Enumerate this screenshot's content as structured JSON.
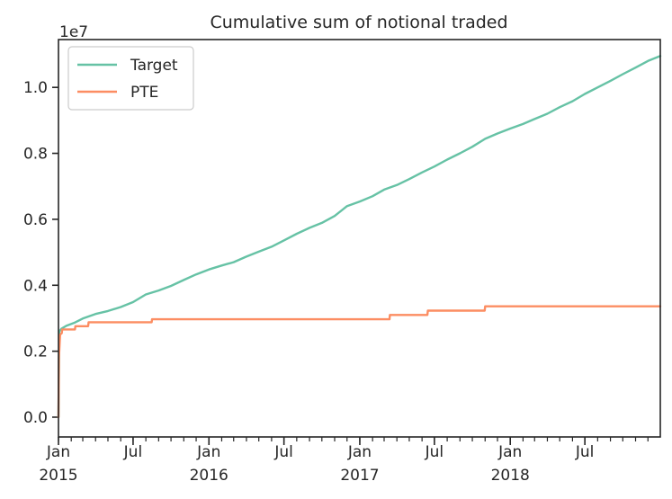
{
  "chart_data": {
    "type": "line",
    "title": "Cumulative sum of notional traded",
    "xlabel": "",
    "ylabel": "",
    "y_offset_label": "1e7",
    "y_unit_multiplier": 10000000,
    "xlim": [
      "2015-01-01",
      "2018-12-31"
    ],
    "ylim": [
      -0.06,
      1.145
    ],
    "y_ticks": [
      0.0,
      0.2,
      0.4,
      0.6,
      0.8,
      1.0
    ],
    "y_tick_labels": [
      "0.0",
      "0.2",
      "0.4",
      "0.6",
      "0.8",
      "1.0"
    ],
    "x_major_ticks": [
      {
        "date": "2015-01-01",
        "label": "Jan",
        "sublabel": "2015"
      },
      {
        "date": "2015-07-01",
        "label": "Jul",
        "sublabel": ""
      },
      {
        "date": "2016-01-01",
        "label": "Jan",
        "sublabel": "2016"
      },
      {
        "date": "2016-07-01",
        "label": "Jul",
        "sublabel": ""
      },
      {
        "date": "2017-01-01",
        "label": "Jan",
        "sublabel": "2017"
      },
      {
        "date": "2017-07-01",
        "label": "Jul",
        "sublabel": ""
      },
      {
        "date": "2018-01-01",
        "label": "Jan",
        "sublabel": "2018"
      },
      {
        "date": "2018-07-01",
        "label": "Jul",
        "sublabel": ""
      }
    ],
    "x_minor_ticks": "monthly",
    "grid": false,
    "legend": {
      "position": "top-left"
    },
    "series": [
      {
        "name": "Target",
        "color": "#66c2a5",
        "x": [
          "2015-01-01",
          "2015-01-03",
          "2015-01-08",
          "2015-01-20",
          "2015-02-10",
          "2015-03-01",
          "2015-04-01",
          "2015-05-01",
          "2015-06-01",
          "2015-07-01",
          "2015-08-01",
          "2015-09-01",
          "2015-10-01",
          "2015-11-01",
          "2015-12-01",
          "2016-01-01",
          "2016-02-01",
          "2016-03-01",
          "2016-04-01",
          "2016-05-01",
          "2016-06-01",
          "2016-07-01",
          "2016-08-01",
          "2016-09-01",
          "2016-10-01",
          "2016-11-01",
          "2016-12-01",
          "2017-01-01",
          "2017-02-01",
          "2017-03-01",
          "2017-04-01",
          "2017-05-01",
          "2017-06-01",
          "2017-07-01",
          "2017-08-01",
          "2017-09-01",
          "2017-10-01",
          "2017-11-01",
          "2017-12-01",
          "2018-01-01",
          "2018-02-01",
          "2018-03-01",
          "2018-04-01",
          "2018-05-01",
          "2018-06-01",
          "2018-07-01",
          "2018-08-01",
          "2018-09-01",
          "2018-10-01",
          "2018-11-01",
          "2018-12-01",
          "2018-12-31"
        ],
        "values": [
          0.0,
          0.26,
          0.268,
          0.277,
          0.287,
          0.299,
          0.313,
          0.322,
          0.334,
          0.349,
          0.372,
          0.384,
          0.398,
          0.416,
          0.433,
          0.448,
          0.46,
          0.47,
          0.487,
          0.502,
          0.517,
          0.536,
          0.556,
          0.574,
          0.589,
          0.61,
          0.64,
          0.654,
          0.67,
          0.69,
          0.704,
          0.722,
          0.742,
          0.76,
          0.781,
          0.8,
          0.82,
          0.844,
          0.86,
          0.875,
          0.889,
          0.904,
          0.92,
          0.94,
          0.958,
          0.98,
          1.0,
          1.02,
          1.04,
          1.06,
          1.08,
          1.095
        ]
      },
      {
        "name": "PTE",
        "color": "#fc8d62",
        "x": [
          "2015-01-01",
          "2015-01-02",
          "2015-01-05",
          "2015-01-09",
          "2015-01-10",
          "2015-02-10",
          "2015-02-11",
          "2015-03-14",
          "2015-03-15",
          "2015-08-15",
          "2015-08-16",
          "2017-03-14",
          "2017-03-15",
          "2017-06-14",
          "2017-06-15",
          "2017-10-31",
          "2017-11-01",
          "2018-12-31"
        ],
        "values": [
          0.0,
          0.18,
          0.25,
          0.255,
          0.266,
          0.266,
          0.276,
          0.276,
          0.288,
          0.288,
          0.297,
          0.297,
          0.31,
          0.31,
          0.323,
          0.323,
          0.336,
          0.336
        ]
      }
    ]
  }
}
